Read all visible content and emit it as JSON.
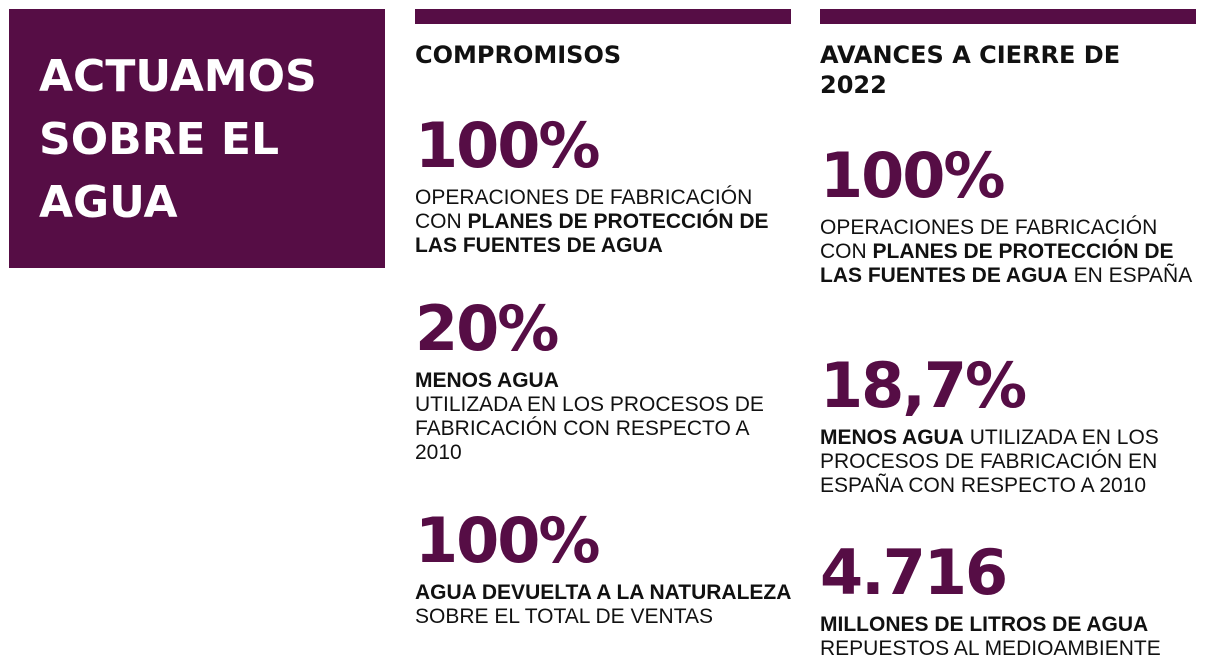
{
  "title": {
    "line1": "ACTUAMOS",
    "line2": "SOBRE EL",
    "line3": "AGUA"
  },
  "colors": {
    "accent": "#560d45",
    "text": "#111111",
    "background": "#ffffff"
  },
  "compromisos": {
    "heading": "COMPROMISOS",
    "items": [
      {
        "value": "100%",
        "text_1": "OPERACIONES DE FABRICACIÓN CON ",
        "bold_1": "PLANES DE PROTECCIÓN DE LAS FUENTES DE AGUA",
        "text_2": ""
      },
      {
        "value": "20%",
        "bold_1": "MENOS AGUA",
        "text_1": "UTILIZADA EN LOS PROCESOS DE FABRICACIÓN CON RESPECTO A 2010"
      },
      {
        "value": "100%",
        "bold_1": "AGUA DEVUELTA A LA NATURALEZA",
        "text_1": " SOBRE EL TOTAL DE VENTAS"
      }
    ]
  },
  "avances": {
    "heading_line1": "AVANCES A CIERRE DE",
    "heading_line2": "2022",
    "items": [
      {
        "value": "100%",
        "text_1": "OPERACIONES DE FABRICACIÓN CON ",
        "bold_1": "PLANES DE PROTECCIÓN DE LAS FUENTES DE AGUA",
        "text_2": " EN ESPAÑA"
      },
      {
        "value": "18,7%",
        "bold_1": "MENOS AGUA",
        "text_1": " UTILIZADA EN LOS PROCESOS DE FABRICACIÓN EN ESPAÑA CON RESPECTO A 2010"
      },
      {
        "value": "4.716",
        "bold_1": "MILLONES DE LITROS DE AGUA",
        "text_1": "REPUESTOS AL MEDIOAMBIENTE"
      }
    ]
  }
}
